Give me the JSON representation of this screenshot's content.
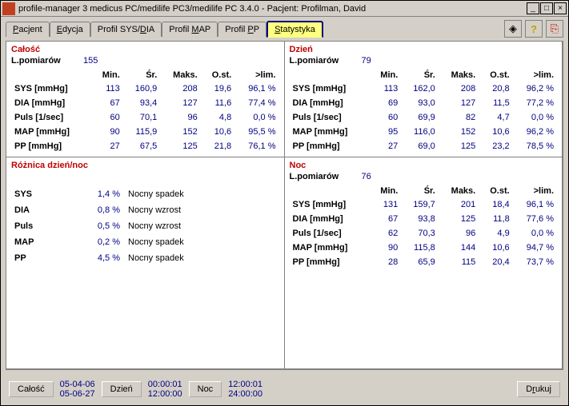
{
  "window": {
    "title": "profile-manager 3    medicus PC/medilife PC3/medilife PC 3.4.0  -  Pacjent: Profilman, David"
  },
  "tabs": {
    "pacjent": "Pacjent",
    "edycja": "Edycja",
    "profil_sysdia": "Profil SYS/DIA",
    "profil_map": "Profil MAP",
    "profil_pp": "Profil PP",
    "statystyka": "Statystyka",
    "active": "statystyka"
  },
  "labels": {
    "l_pomiarow": "L.pomiarów",
    "cols": {
      "min": "Min.",
      "sr": "Śr.",
      "maks": "Maks.",
      "ost": "O.st.",
      "lim": ">lim."
    }
  },
  "panels": {
    "calosc": {
      "title": "Całość",
      "count": "155",
      "rows": [
        {
          "name": "SYS [mmHg]",
          "min": "113",
          "sr": "160,9",
          "maks": "208",
          "ost": "19,6",
          "lim": "96,1 %"
        },
        {
          "name": "DIA [mmHg]",
          "min": "67",
          "sr": "93,4",
          "maks": "127",
          "ost": "11,6",
          "lim": "77,4 %"
        },
        {
          "name": "Puls [1/sec]",
          "min": "60",
          "sr": "70,1",
          "maks": "96",
          "ost": "4,8",
          "lim": "0,0 %"
        },
        {
          "name": "MAP [mmHg]",
          "min": "90",
          "sr": "115,9",
          "maks": "152",
          "ost": "10,6",
          "lim": "95,5 %"
        },
        {
          "name": "PP [mmHg]",
          "min": "27",
          "sr": "67,5",
          "maks": "125",
          "ost": "21,8",
          "lim": "76,1 %"
        }
      ]
    },
    "dzien": {
      "title": "Dzień",
      "count": "79",
      "rows": [
        {
          "name": "SYS [mmHg]",
          "min": "113",
          "sr": "162,0",
          "maks": "208",
          "ost": "20,8",
          "lim": "96,2 %"
        },
        {
          "name": "DIA [mmHg]",
          "min": "69",
          "sr": "93,0",
          "maks": "127",
          "ost": "11,5",
          "lim": "77,2 %"
        },
        {
          "name": "Puls [1/sec]",
          "min": "60",
          "sr": "69,9",
          "maks": "82",
          "ost": "4,7",
          "lim": "0,0 %"
        },
        {
          "name": "MAP [mmHg]",
          "min": "95",
          "sr": "116,0",
          "maks": "152",
          "ost": "10,6",
          "lim": "96,2 %"
        },
        {
          "name": "PP [mmHg]",
          "min": "27",
          "sr": "69,0",
          "maks": "125",
          "ost": "23,2",
          "lim": "78,5 %"
        }
      ]
    },
    "roznica": {
      "title": "Różnica dzień/noc",
      "rows": [
        {
          "name": "SYS",
          "pct": "1,4 %",
          "desc": "Nocny spadek"
        },
        {
          "name": "DIA",
          "pct": "0,8 %",
          "desc": "Nocny wzrost"
        },
        {
          "name": "Puls",
          "pct": "0,5 %",
          "desc": "Nocny wzrost"
        },
        {
          "name": "MAP",
          "pct": "0,2 %",
          "desc": "Nocny spadek"
        },
        {
          "name": "PP",
          "pct": "4,5 %",
          "desc": "Nocny spadek"
        }
      ]
    },
    "noc": {
      "title": "Noc",
      "count": "76",
      "rows": [
        {
          "name": "SYS [mmHg]",
          "min": "131",
          "sr": "159,7",
          "maks": "201",
          "ost": "18,4",
          "lim": "96,1 %"
        },
        {
          "name": "DIA [mmHg]",
          "min": "67",
          "sr": "93,8",
          "maks": "125",
          "ost": "11,8",
          "lim": "77,6 %"
        },
        {
          "name": "Puls [1/sec]",
          "min": "62",
          "sr": "70,3",
          "maks": "96",
          "ost": "4,9",
          "lim": "0,0 %"
        },
        {
          "name": "MAP [mmHg]",
          "min": "90",
          "sr": "115,8",
          "maks": "144",
          "ost": "10,6",
          "lim": "94,7 %"
        },
        {
          "name": "PP [mmHg]",
          "min": "28",
          "sr": "65,9",
          "maks": "115",
          "ost": "20,4",
          "lim": "73,7 %"
        }
      ]
    }
  },
  "footer": {
    "calosc": "Całość",
    "calosc_dates": "05-04-06\n05-06-27",
    "dzien": "Dzień",
    "dzien_times": "00:00:01\n12:00:00",
    "noc": "Noc",
    "noc_times": "12:00:01\n24:00:00",
    "drukuj": "Drukuj"
  }
}
